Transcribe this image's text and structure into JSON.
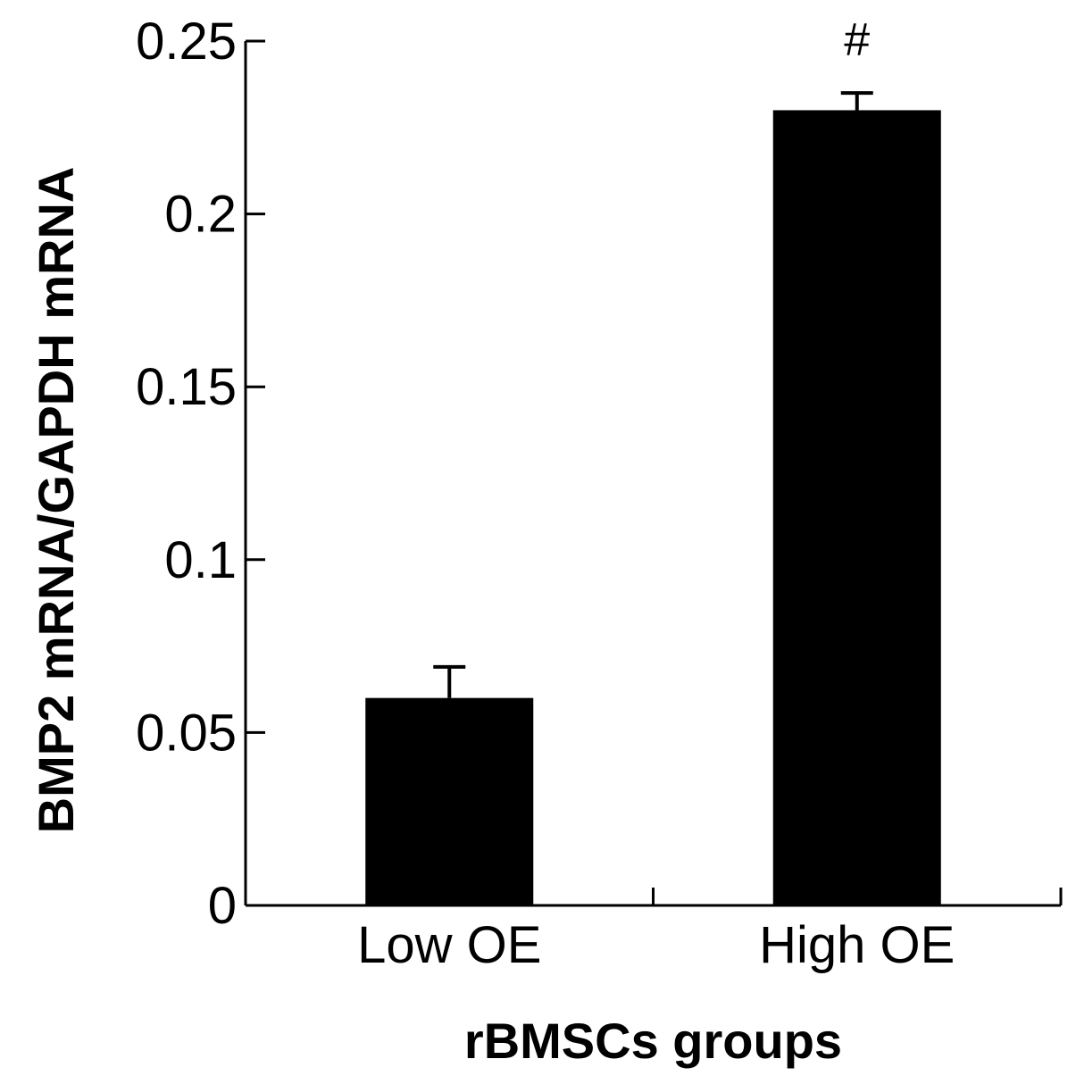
{
  "chart_data": {
    "type": "bar",
    "title": "",
    "xlabel": "rBMSCs groups",
    "ylabel": "BMP2 mRNA/GAPDH mRNA",
    "ylim": [
      0,
      0.25
    ],
    "yticks": [
      0,
      0.05,
      0.1,
      0.15,
      0.2,
      0.25
    ],
    "ytick_labels": [
      "0",
      "0.05",
      "0.1",
      "0.15",
      "0.2",
      "0.25"
    ],
    "categories": [
      "Low OE",
      "High OE"
    ],
    "values": [
      0.06,
      0.23
    ],
    "errors": [
      0.009,
      0.005
    ],
    "annotations": [
      "",
      "#"
    ],
    "bar_color": "#000000",
    "grid": false
  }
}
